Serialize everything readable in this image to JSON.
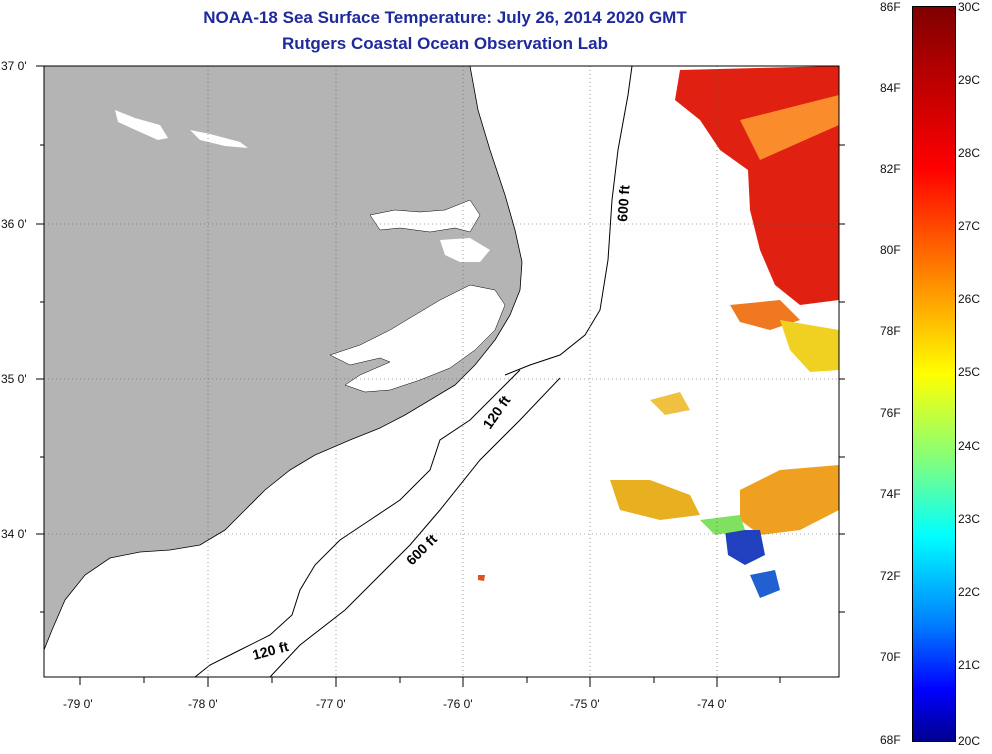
{
  "title": {
    "line1": "NOAA-18 Sea Surface Temperature:  July 26, 2014 2020 GMT",
    "line2": "Rutgers Coastal Ocean Observation Lab"
  },
  "map": {
    "lat_labels": [
      "37 0'",
      "36 0'",
      "35 0'",
      "34 0'"
    ],
    "lon_labels": [
      "-79 0'",
      "-78 0'",
      "-77 0'",
      "-76 0'",
      "-75 0'",
      "-74 0'"
    ],
    "depth_labels": [
      "600 ft",
      "120 ft",
      "600 ft",
      "120 ft"
    ],
    "colors": {
      "land": "#b4b4b4",
      "water": "#ffffff",
      "title": "#1f2a9c"
    }
  },
  "colorbar": {
    "fahrenheit": [
      "86F",
      "84F",
      "82F",
      "80F",
      "78F",
      "76F",
      "74F",
      "72F",
      "70F",
      "68F"
    ],
    "celsius": [
      "30C",
      "29C",
      "28C",
      "27C",
      "26C",
      "25C",
      "24C",
      "23C",
      "22C",
      "21C",
      "20C"
    ]
  }
}
